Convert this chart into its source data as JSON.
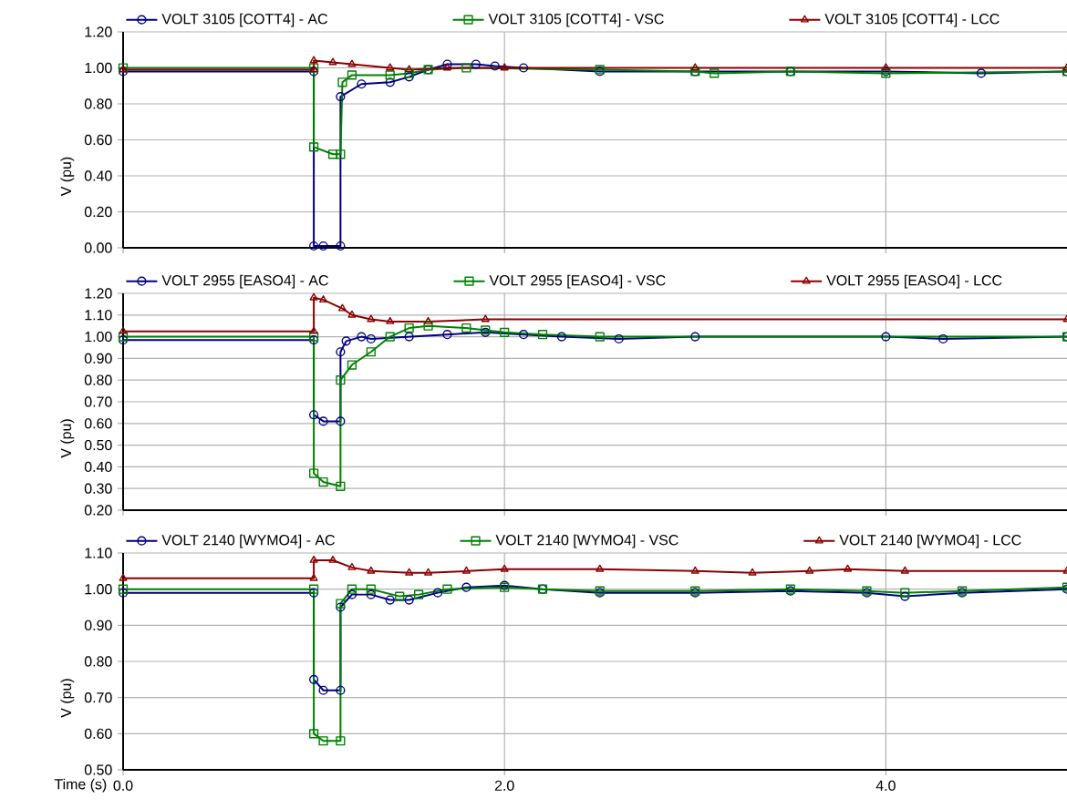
{
  "chart_data": [
    {
      "type": "line",
      "ylabel": "V (pu)",
      "xlim": [
        0,
        4.95
      ],
      "ylim": [
        0,
        1.2
      ],
      "grid": true,
      "legend": "top",
      "tick_labels": "y",
      "xticks": [
        {
          "value": 0,
          "label": null
        },
        {
          "value": 2,
          "label": null
        },
        {
          "value": 4,
          "label": null
        }
      ],
      "yticks": [
        {
          "value": 0,
          "label": "0.00"
        },
        {
          "value": 0.2,
          "label": "0.20"
        },
        {
          "value": 0.4,
          "label": "0.40"
        },
        {
          "value": 0.6,
          "label": "0.60"
        },
        {
          "value": 0.8,
          "label": "0.80"
        },
        {
          "value": 1.0,
          "label": "1.00"
        },
        {
          "value": 1.2,
          "label": "1.20"
        }
      ],
      "series": [
        {
          "name": "VOLT   3105 [COTT4] - AC",
          "color": "#000080",
          "marker": "circle",
          "x": [
            0,
            1.0,
            1.0,
            1.05,
            1.14,
            1.14,
            1.25,
            1.4,
            1.5,
            1.6,
            1.7,
            1.85,
            1.95,
            2.1,
            2.5,
            3.0,
            3.5,
            4.0,
            4.5,
            4.95
          ],
          "values": [
            0.98,
            0.98,
            0.01,
            0.01,
            0.01,
            0.84,
            0.91,
            0.92,
            0.95,
            0.99,
            1.02,
            1.02,
            1.01,
            1.0,
            0.98,
            0.98,
            0.98,
            0.98,
            0.97,
            0.98
          ]
        },
        {
          "name": "VOLT   3105 [COTT4] - VSC",
          "color": "#008000",
          "marker": "square",
          "x": [
            0,
            1.0,
            1.0,
            1.1,
            1.14,
            1.15,
            1.2,
            1.4,
            1.5,
            1.6,
            1.8,
            2.5,
            3.0,
            3.1,
            3.5,
            4.0,
            4.95
          ],
          "values": [
            1.0,
            1.0,
            0.56,
            0.52,
            0.52,
            0.92,
            0.96,
            0.96,
            0.97,
            0.99,
            1.0,
            0.99,
            0.98,
            0.97,
            0.98,
            0.97,
            0.98
          ]
        },
        {
          "name": "VOLT   3105 [COTT4] - LCC",
          "color": "#8b0000",
          "marker": "triangle",
          "x": [
            0,
            1.0,
            1.0,
            1.1,
            1.2,
            1.4,
            1.5,
            1.7,
            2.0,
            3.0,
            4.0,
            4.95
          ],
          "values": [
            0.99,
            0.99,
            1.04,
            1.03,
            1.02,
            1.0,
            0.99,
            1.0,
            1.0,
            1.0,
            1.0,
            1.0
          ]
        }
      ]
    },
    {
      "type": "line",
      "ylabel": "V (pu)",
      "xlim": [
        0,
        4.95
      ],
      "ylim": [
        0.2,
        1.2
      ],
      "grid": true,
      "legend": "top",
      "tick_labels": "y",
      "xticks": [
        {
          "value": 0,
          "label": null
        },
        {
          "value": 2,
          "label": null
        },
        {
          "value": 4,
          "label": null
        }
      ],
      "yticks": [
        {
          "value": 0.2,
          "label": "0.20"
        },
        {
          "value": 0.3,
          "label": "0.30"
        },
        {
          "value": 0.4,
          "label": "0.40"
        },
        {
          "value": 0.5,
          "label": "0.50"
        },
        {
          "value": 0.6,
          "label": "0.60"
        },
        {
          "value": 0.7,
          "label": "0.70"
        },
        {
          "value": 0.8,
          "label": "0.80"
        },
        {
          "value": 0.9,
          "label": "0.90"
        },
        {
          "value": 1.0,
          "label": "1.00"
        },
        {
          "value": 1.1,
          "label": "1.10"
        },
        {
          "value": 1.2,
          "label": "1.20"
        }
      ],
      "series": [
        {
          "name": "VOLT   2955 [EASO4] - AC",
          "color": "#000080",
          "marker": "circle",
          "x": [
            0,
            1.0,
            1.0,
            1.05,
            1.14,
            1.14,
            1.17,
            1.25,
            1.3,
            1.5,
            1.7,
            1.9,
            2.1,
            2.3,
            2.6,
            3.0,
            4.0,
            4.3,
            4.95
          ],
          "values": [
            0.985,
            0.985,
            0.64,
            0.61,
            0.61,
            0.93,
            0.98,
            1.0,
            0.99,
            1.0,
            1.01,
            1.02,
            1.01,
            1.0,
            0.99,
            1.0,
            1.0,
            0.99,
            1.0
          ]
        },
        {
          "name": "VOLT   2955 [EASO4] - VSC",
          "color": "#008000",
          "marker": "square",
          "x": [
            0,
            1.0,
            1.0,
            1.05,
            1.14,
            1.14,
            1.2,
            1.3,
            1.4,
            1.5,
            1.6,
            1.8,
            1.9,
            2.0,
            2.2,
            2.5,
            4.95
          ],
          "values": [
            1.0,
            1.0,
            0.37,
            0.33,
            0.31,
            0.8,
            0.87,
            0.93,
            1.0,
            1.04,
            1.05,
            1.04,
            1.03,
            1.02,
            1.01,
            1.0,
            1.0
          ]
        },
        {
          "name": "VOLT   2955 [EASO4] - LCC",
          "color": "#8b0000",
          "marker": "triangle",
          "x": [
            0,
            1.0,
            1.0,
            1.05,
            1.15,
            1.2,
            1.3,
            1.4,
            1.6,
            1.9,
            4.95
          ],
          "values": [
            1.025,
            1.025,
            1.18,
            1.17,
            1.13,
            1.1,
            1.08,
            1.07,
            1.07,
            1.08,
            1.08
          ]
        }
      ]
    },
    {
      "type": "line",
      "ylabel": "V (pu)",
      "xlabel": "Time (s)",
      "xlim": [
        0,
        4.95
      ],
      "ylim": [
        0.5,
        1.1
      ],
      "grid": true,
      "legend": "top",
      "xticks": [
        {
          "value": 0,
          "label": "0.0"
        },
        {
          "value": 2,
          "label": "2.0"
        },
        {
          "value": 4,
          "label": "4.0"
        }
      ],
      "yticks": [
        {
          "value": 0.5,
          "label": "0.50"
        },
        {
          "value": 0.6,
          "label": "0.60"
        },
        {
          "value": 0.7,
          "label": "0.70"
        },
        {
          "value": 0.8,
          "label": "0.80"
        },
        {
          "value": 0.9,
          "label": "0.90"
        },
        {
          "value": 1.0,
          "label": "1.00"
        },
        {
          "value": 1.1,
          "label": "1.10"
        }
      ],
      "series": [
        {
          "name": "VOLT   2140 [WYMO4] - AC",
          "color": "#000080",
          "marker": "circle",
          "x": [
            0,
            1.0,
            1.0,
            1.05,
            1.14,
            1.14,
            1.2,
            1.3,
            1.4,
            1.5,
            1.65,
            1.8,
            2.0,
            2.2,
            2.5,
            3.0,
            3.5,
            3.9,
            4.1,
            4.4,
            4.95
          ],
          "values": [
            0.99,
            0.99,
            0.75,
            0.72,
            0.72,
            0.95,
            0.985,
            0.985,
            0.97,
            0.97,
            0.99,
            1.005,
            1.01,
            1.0,
            0.99,
            0.99,
            0.995,
            0.99,
            0.98,
            0.99,
            1.0
          ]
        },
        {
          "name": "VOLT   2140 [WYMO4] - VSC",
          "color": "#008000",
          "marker": "square",
          "x": [
            0,
            1.0,
            1.0,
            1.05,
            1.14,
            1.14,
            1.2,
            1.3,
            1.45,
            1.55,
            1.7,
            2.0,
            2.2,
            2.5,
            3.0,
            3.5,
            3.9,
            4.1,
            4.4,
            4.95
          ],
          "values": [
            1.0,
            1.0,
            0.6,
            0.58,
            0.58,
            0.96,
            1.0,
            1.0,
            0.98,
            0.985,
            1.0,
            1.005,
            1.0,
            0.995,
            0.995,
            1.0,
            0.995,
            0.99,
            0.995,
            1.005
          ]
        },
        {
          "name": "VOLT   2140 [WYMO4] - LCC",
          "color": "#8b0000",
          "marker": "triangle",
          "x": [
            0,
            1.0,
            1.0,
            1.1,
            1.2,
            1.3,
            1.5,
            1.6,
            1.8,
            2.0,
            2.5,
            3.0,
            3.3,
            3.6,
            3.8,
            4.1,
            4.95
          ],
          "values": [
            1.03,
            1.03,
            1.08,
            1.08,
            1.06,
            1.05,
            1.045,
            1.045,
            1.05,
            1.055,
            1.055,
            1.05,
            1.045,
            1.05,
            1.055,
            1.05,
            1.05
          ]
        }
      ]
    }
  ]
}
